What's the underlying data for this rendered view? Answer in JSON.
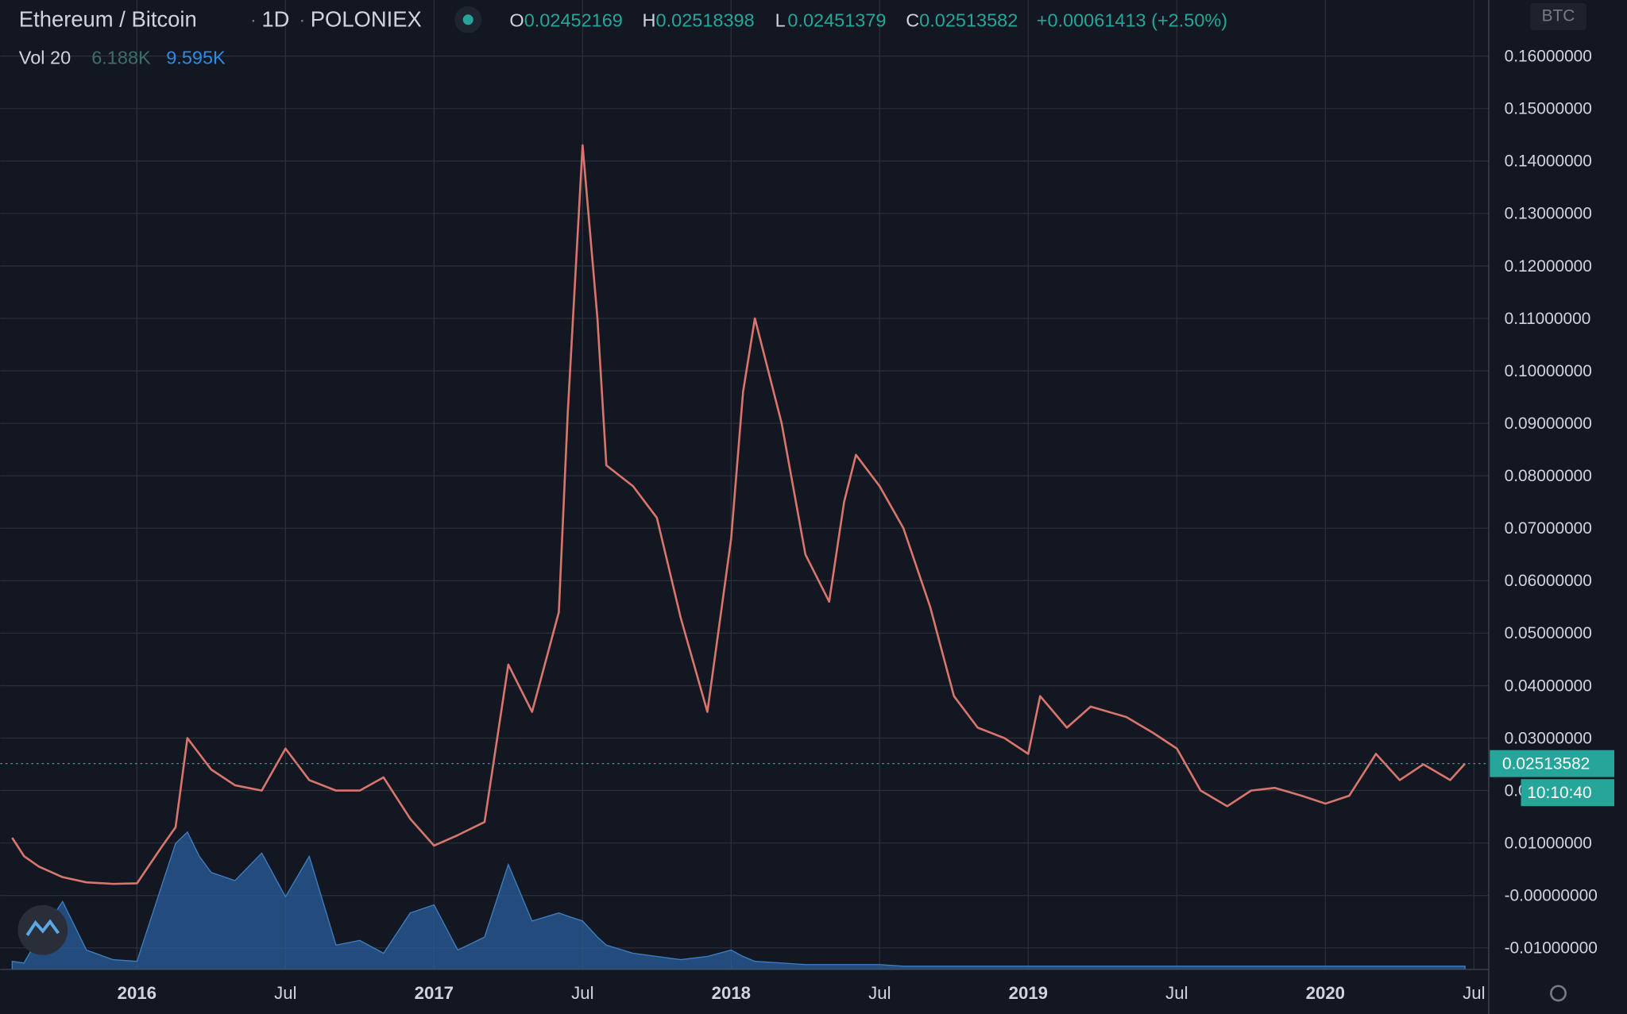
{
  "chart_data": {
    "type": "line",
    "header": {
      "symbol": "Ethereum / Bitcoin",
      "interval": "1D",
      "exchange": "POLONIEX",
      "o_label": "O",
      "open": "0.02452169",
      "h_label": "H",
      "high": "0.02518398",
      "l_label": "L",
      "low": "0.02451379",
      "c_label": "C",
      "close": "0.02513582",
      "change": "+0.00061413 (+2.50%)",
      "volume_label": "Vol 20",
      "volume_value": "6.188K",
      "volume_ma": "9.595K"
    },
    "currency": "BTC",
    "last_price": {
      "value": 0.02513582,
      "label": "0.02513582"
    },
    "countdown": "10:10:40",
    "x": [
      2015.58,
      2015.62,
      2015.67,
      2015.75,
      2015.83,
      2015.92,
      2016.0,
      2016.08,
      2016.13,
      2016.17,
      2016.21,
      2016.25,
      2016.33,
      2016.42,
      2016.5,
      2016.58,
      2016.67,
      2016.75,
      2016.83,
      2016.92,
      2017.0,
      2017.08,
      2017.17,
      2017.25,
      2017.33,
      2017.42,
      2017.45,
      2017.5,
      2017.55,
      2017.58,
      2017.67,
      2017.75,
      2017.83,
      2017.92,
      2018.0,
      2018.04,
      2018.08,
      2018.17,
      2018.25,
      2018.33,
      2018.38,
      2018.42,
      2018.5,
      2018.58,
      2018.67,
      2018.75,
      2018.83,
      2018.92,
      2019.0,
      2019.04,
      2019.13,
      2019.21,
      2019.33,
      2019.42,
      2019.5,
      2019.58,
      2019.67,
      2019.75,
      2019.83,
      2019.92,
      2020.0,
      2020.08,
      2020.17,
      2020.25,
      2020.33,
      2020.42,
      2020.47
    ],
    "series": [
      {
        "name": "ETH/BTC",
        "color": "#d8756c",
        "values": [
          0.011,
          0.0075,
          0.0055,
          0.0035,
          0.0025,
          0.0022,
          0.0023,
          0.009,
          0.013,
          0.03,
          0.027,
          0.024,
          0.021,
          0.02,
          0.028,
          0.022,
          0.02,
          0.02,
          0.0225,
          0.0146,
          0.0095,
          0.0115,
          0.014,
          0.044,
          0.035,
          0.054,
          0.092,
          0.143,
          0.11,
          0.082,
          0.078,
          0.072,
          0.053,
          0.035,
          0.068,
          0.096,
          0.11,
          0.09,
          0.065,
          0.056,
          0.075,
          0.084,
          0.078,
          0.07,
          0.055,
          0.038,
          0.032,
          0.03,
          0.027,
          0.038,
          0.032,
          0.036,
          0.034,
          0.031,
          0.028,
          0.02,
          0.017,
          0.02,
          0.0205,
          0.019,
          0.0175,
          0.019,
          0.027,
          0.022,
          0.025,
          0.022,
          0.02513582
        ]
      },
      {
        "name": "Vol",
        "color": "#2a5d9a",
        "axis": "y2",
        "values": [
          5,
          4,
          20,
          42,
          12,
          6,
          5,
          50,
          78,
          85,
          70,
          60,
          55,
          72,
          45,
          70,
          15,
          18,
          10,
          35,
          40,
          12,
          20,
          65,
          30,
          35,
          33,
          30,
          20,
          15,
          10,
          8,
          6,
          8,
          12,
          8,
          5,
          4,
          3,
          3,
          3,
          3,
          3,
          2,
          2,
          2,
          2,
          2,
          2,
          2,
          2,
          2,
          2,
          2,
          2,
          2,
          2,
          2,
          2,
          2,
          2,
          2,
          2,
          2,
          2,
          2,
          2
        ]
      }
    ],
    "xlim": [
      2015.54,
      2020.55
    ],
    "xticks": [
      {
        "value": 2016,
        "label": "2016"
      },
      {
        "value": 2016.5,
        "label": "Jul"
      },
      {
        "value": 2017,
        "label": "2017"
      },
      {
        "value": 2017.5,
        "label": "Jul"
      },
      {
        "value": 2018,
        "label": "2018"
      },
      {
        "value": 2018.5,
        "label": "Jul"
      },
      {
        "value": 2019,
        "label": "2019"
      },
      {
        "value": 2019.5,
        "label": "Jul"
      },
      {
        "value": 2020,
        "label": "2020"
      },
      {
        "value": 2020.5,
        "label": "Jul"
      }
    ],
    "ylim": [
      -0.0141,
      0.1707
    ],
    "yticks": [
      {
        "value": -0.01,
        "label": "-0.01000000"
      },
      {
        "value": 0,
        "label": "-0.00000000"
      },
      {
        "value": 0.01,
        "label": "0.01000000"
      },
      {
        "value": 0.02,
        "label": "0.02000000"
      },
      {
        "value": 0.03,
        "label": "0.03000000"
      },
      {
        "value": 0.04,
        "label": "0.04000000"
      },
      {
        "value": 0.05,
        "label": "0.05000000"
      },
      {
        "value": 0.06,
        "label": "0.06000000"
      },
      {
        "value": 0.07,
        "label": "0.07000000"
      },
      {
        "value": 0.08,
        "label": "0.08000000"
      },
      {
        "value": 0.09,
        "label": "0.09000000"
      },
      {
        "value": 0.1,
        "label": "0.10000000"
      },
      {
        "value": 0.11,
        "label": "0.11000000"
      },
      {
        "value": 0.12,
        "label": "0.12000000"
      },
      {
        "value": 0.13,
        "label": "0.13000000"
      },
      {
        "value": 0.14,
        "label": "0.14000000"
      },
      {
        "value": 0.15,
        "label": "0.15000000"
      },
      {
        "value": 0.16,
        "label": "0.16000000"
      }
    ],
    "y2lim": [
      0,
      600
    ],
    "grid": true
  }
}
